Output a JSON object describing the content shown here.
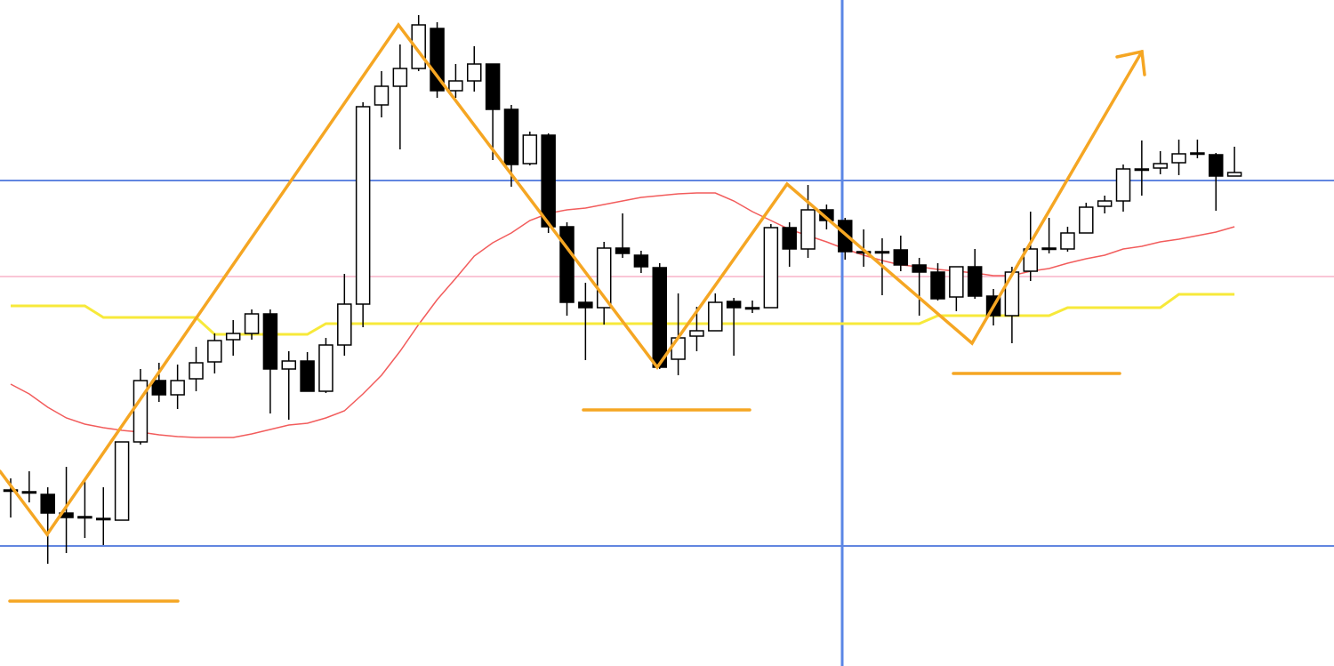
{
  "chart_data": {
    "type": "candlestick",
    "ylim": [
      0,
      749
    ],
    "open": [
      198,
      196,
      193,
      172,
      168,
      166,
      164,
      252,
      321,
      305,
      323,
      342,
      367,
      374,
      396,
      334,
      343,
      309,
      361,
      407,
      631,
      652,
      672,
      717,
      647,
      658,
      677,
      626,
      565,
      597,
      494,
      409,
      403,
      470,
      462,
      448,
      345,
      371,
      377,
      410,
      403,
      403,
      493,
      469,
      513,
      501,
      466,
      466,
      468,
      451,
      443,
      415,
      449,
      416,
      394,
      444,
      470,
      469,
      487,
      517,
      523,
      559,
      560,
      566,
      577,
      575,
      551
    ],
    "high": [
      211,
      219,
      201,
      224,
      209,
      201,
      252,
      334,
      341,
      339,
      359,
      374,
      389,
      401,
      401,
      354,
      353,
      369,
      441,
      634,
      669,
      699,
      732,
      724,
      677,
      697,
      677,
      631,
      601,
      599,
      499,
      431,
      477,
      509,
      467,
      453,
      419,
      404,
      419,
      414,
      411,
      497,
      499,
      541,
      519,
      504,
      491,
      481,
      484,
      459,
      453,
      449,
      469,
      424,
      449,
      511,
      504,
      494,
      521,
      529,
      564,
      591,
      579,
      592,
      592,
      577,
      584
    ],
    "low": [
      167,
      184,
      115,
      127,
      144,
      136,
      164,
      249,
      297,
      289,
      309,
      329,
      349,
      367,
      284,
      277,
      309,
      307,
      349,
      381,
      617,
      581,
      669,
      639,
      639,
      646,
      569,
      539,
      563,
      487,
      394,
      344,
      384,
      459,
      442,
      334,
      327,
      354,
      377,
      349,
      397,
      403,
      449,
      459,
      491,
      457,
      449,
      417,
      444,
      394,
      411,
      399,
      413,
      383,
      363,
      433,
      464,
      466,
      487,
      509,
      511,
      529,
      553,
      552,
      571,
      512,
      551
    ],
    "close": [
      197,
      196,
      172,
      167,
      168,
      166,
      252,
      321,
      305,
      321,
      341,
      366,
      374,
      396,
      334,
      343,
      309,
      361,
      407,
      629,
      652,
      672,
      721,
      647,
      658,
      677,
      626,
      564,
      597,
      494,
      409,
      403,
      470,
      464,
      449,
      336,
      369,
      377,
      409,
      403,
      403,
      493,
      469,
      513,
      501,
      466,
      465,
      466,
      451,
      443,
      413,
      449,
      416,
      394,
      443,
      469,
      470,
      487,
      516,
      523,
      559,
      559,
      565,
      576,
      577,
      551,
      555
    ],
    "up_color": "#ffffff",
    "down_color": "#000000",
    "wick_color": "#000000",
    "lines": [
      {
        "color": "#f25c5c",
        "values": [
          317,
          306,
          291,
          279,
          272,
          268,
          265,
          263,
          260,
          258,
          257,
          257,
          257,
          261,
          266,
          271,
          273,
          279,
          287,
          306,
          327,
          354,
          384,
          412,
          436,
          461,
          476,
          487,
          501,
          509,
          513,
          515,
          519,
          523,
          527,
          529,
          531,
          532,
          532,
          523,
          511,
          501,
          491,
          484,
          477,
          469,
          462,
          456,
          451,
          449,
          446,
          444,
          442,
          439,
          439,
          444,
          447,
          453,
          458,
          462,
          469,
          472,
          477,
          480,
          484,
          488,
          494
        ]
      },
      {
        "color": "#f7e93a",
        "values": [
          405,
          405,
          405,
          405,
          405,
          392,
          392,
          392,
          392,
          392,
          392,
          373,
          373,
          373,
          373,
          373,
          373,
          385,
          385,
          385,
          385,
          385,
          385,
          385,
          385,
          385,
          385,
          385,
          385,
          385,
          385,
          385,
          385,
          385,
          385,
          385,
          385,
          385,
          385,
          385,
          385,
          385,
          385,
          385,
          385,
          385,
          385,
          385,
          385,
          385,
          394,
          394,
          394,
          394,
          394,
          394,
          394,
          403,
          403,
          403,
          403,
          403,
          403,
          418,
          418,
          418,
          418
        ]
      }
    ],
    "hlines": [
      {
        "value": 546,
        "color": "#2f5fd6"
      },
      {
        "value": 135,
        "color": "#2f5fd6"
      },
      {
        "value": 438,
        "color": "#f8b4c8"
      }
    ]
  }
}
